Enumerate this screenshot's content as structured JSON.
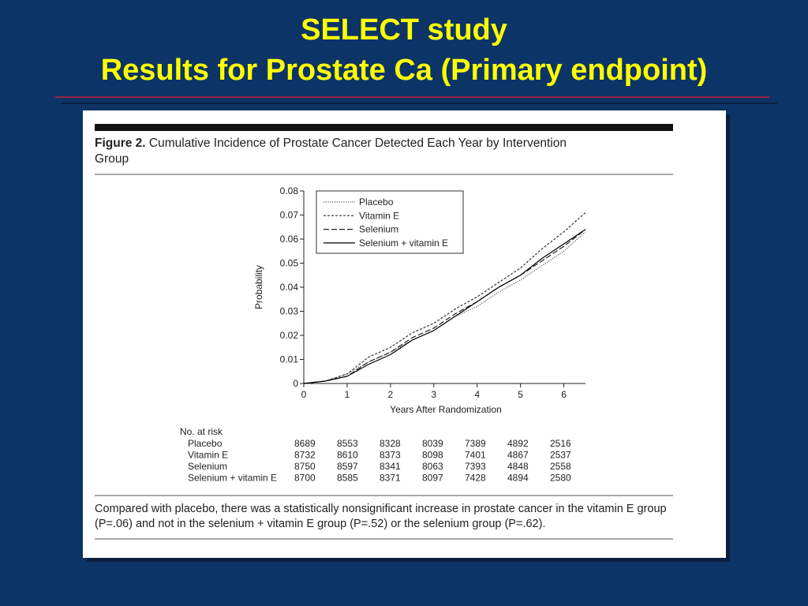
{
  "slide": {
    "title_line1": "SELECT study",
    "title_line2": "Results for Prostate Ca (Primary endpoint)"
  },
  "figure": {
    "label": "Figure 2.",
    "caption": "Cumulative Incidence of Prostate Cancer Detected Each Year by Intervention Group",
    "footnote": "Compared with placebo, there was a statistically nonsignificant increase in prostate cancer in the vitamin E group (P=.06) and not in the selenium + vitamin E group (P=.52) or the selenium group (P=.62)."
  },
  "chart_data": {
    "type": "line",
    "xlabel": "Years After Randomization",
    "ylabel": "Probability",
    "x": [
      0,
      0.5,
      1,
      1.5,
      2,
      2.5,
      3,
      3.5,
      4,
      4.5,
      5,
      5.5,
      6,
      6.5
    ],
    "xlim": [
      0,
      6.5
    ],
    "xticks": [
      0,
      1,
      2,
      3,
      4,
      5,
      6
    ],
    "ylim": [
      0,
      0.08
    ],
    "yticks": [
      0,
      0.01,
      0.02,
      0.03,
      0.04,
      0.05,
      0.06,
      0.07,
      0.08
    ],
    "legend": "upper left",
    "series": [
      {
        "name": "Placebo",
        "color": "#555555",
        "style": "dotted",
        "values": [
          0,
          0.001,
          0.004,
          0.009,
          0.013,
          0.018,
          0.022,
          0.028,
          0.032,
          0.038,
          0.043,
          0.049,
          0.055,
          0.063
        ]
      },
      {
        "name": "Vitamin E",
        "color": "#333333",
        "style": "dashed",
        "values": [
          0,
          0.001,
          0.004,
          0.011,
          0.015,
          0.021,
          0.025,
          0.031,
          0.036,
          0.042,
          0.048,
          0.056,
          0.063,
          0.071
        ]
      },
      {
        "name": "Selenium",
        "color": "#222222",
        "style": "longdash",
        "values": [
          0,
          0.001,
          0.003,
          0.009,
          0.013,
          0.019,
          0.023,
          0.029,
          0.034,
          0.04,
          0.045,
          0.051,
          0.057,
          0.064
        ]
      },
      {
        "name": "Selenium + vitamin E",
        "color": "#000000",
        "style": "solid",
        "values": [
          0,
          0.001,
          0.003,
          0.008,
          0.012,
          0.018,
          0.022,
          0.028,
          0.034,
          0.04,
          0.045,
          0.052,
          0.058,
          0.064
        ]
      }
    ]
  },
  "at_risk": {
    "title": "No. at risk",
    "rows": [
      {
        "label": "Placebo",
        "values": [
          "8689",
          "8553",
          "8328",
          "8039",
          "7389",
          "4892",
          "2516"
        ]
      },
      {
        "label": "Vitamin E",
        "values": [
          "8732",
          "8610",
          "8373",
          "8098",
          "7401",
          "4867",
          "2537"
        ]
      },
      {
        "label": "Selenium",
        "values": [
          "8750",
          "8597",
          "8341",
          "8063",
          "7393",
          "4848",
          "2558"
        ]
      },
      {
        "label": "Selenium + vitamin E",
        "values": [
          "8700",
          "8585",
          "8371",
          "8097",
          "7428",
          "4894",
          "2580"
        ]
      }
    ]
  }
}
